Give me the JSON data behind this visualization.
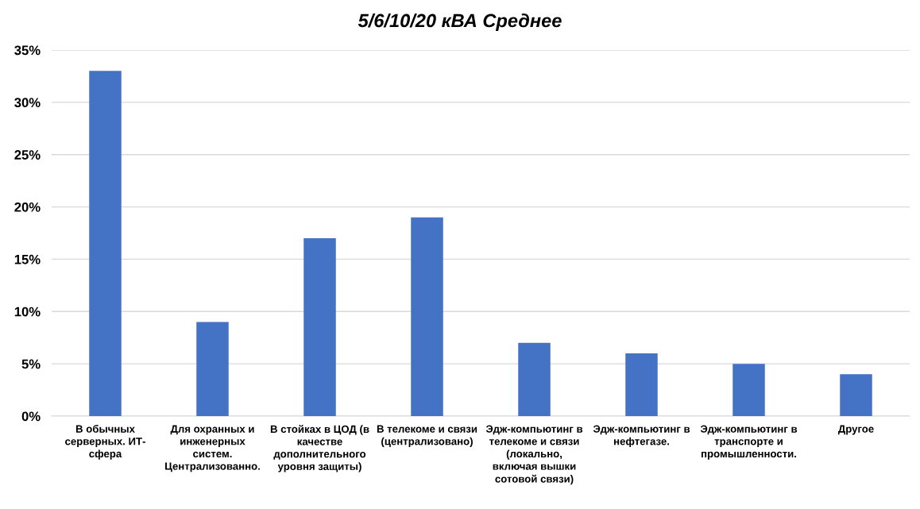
{
  "chart_data": {
    "type": "bar",
    "title": "5/6/10/20 кВА Среднее",
    "categories": [
      "В обычных\nсерверных. ИТ-\nсфера",
      "Для охранных и\nинженерных\nсистем.\nЦентрализованно.",
      "В стойках в ЦОД (в\nкачестве\nдополнительного\nуровня защиты)",
      "В телекоме и связи\n(централизовано)",
      "Эдж-компьютинг в\nтелекоме и связи\n(локально,\nвключая вышки\nсотовой связи)",
      "Эдж-компьютинг в\nнефтегазе.",
      "Эдж-компьютинг в\nтранспорте и\nпромышленности.",
      "Другое"
    ],
    "values": [
      33,
      9,
      17,
      19,
      7,
      6,
      5,
      4
    ],
    "color": "#4472c4",
    "ylim": [
      0,
      35
    ],
    "yticks": [
      {
        "value": 0,
        "label": "0%"
      },
      {
        "value": 5,
        "label": "5%"
      },
      {
        "value": 10,
        "label": "10%"
      },
      {
        "value": 15,
        "label": "15%"
      },
      {
        "value": 20,
        "label": "20%"
      },
      {
        "value": 25,
        "label": "25%"
      },
      {
        "value": 30,
        "label": "30%"
      },
      {
        "value": 35,
        "label": "35%"
      }
    ],
    "grid": "y"
  }
}
